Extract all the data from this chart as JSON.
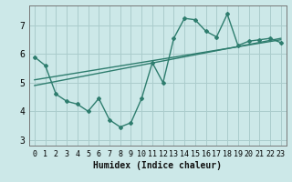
{
  "xlabel": "Humidex (Indice chaleur)",
  "ylabel": "",
  "background_color": "#cce8e8",
  "grid_color": "#aacccc",
  "line_color": "#2e7d6e",
  "xlim": [
    -0.5,
    23.5
  ],
  "ylim": [
    2.8,
    7.7
  ],
  "xticks": [
    0,
    1,
    2,
    3,
    4,
    5,
    6,
    7,
    8,
    9,
    10,
    11,
    12,
    13,
    14,
    15,
    16,
    17,
    18,
    19,
    20,
    21,
    22,
    23
  ],
  "yticks": [
    3,
    4,
    5,
    6,
    7
  ],
  "data_x": [
    0,
    1,
    2,
    3,
    4,
    5,
    6,
    7,
    8,
    9,
    10,
    11,
    12,
    13,
    14,
    15,
    16,
    17,
    18,
    19,
    20,
    21,
    22,
    23
  ],
  "data_y": [
    5.9,
    5.6,
    4.6,
    4.35,
    4.25,
    4.0,
    4.45,
    3.7,
    3.45,
    3.6,
    4.45,
    5.7,
    5.0,
    6.55,
    7.25,
    7.2,
    6.8,
    6.6,
    7.4,
    6.3,
    6.45,
    6.5,
    6.55,
    6.4
  ],
  "trend1_x": [
    0,
    23
  ],
  "trend1_y": [
    4.9,
    6.55
  ],
  "trend2_x": [
    0,
    23
  ],
  "trend2_y": [
    5.1,
    6.5
  ],
  "xlabel_fontsize": 7,
  "tick_fontsize": 6
}
